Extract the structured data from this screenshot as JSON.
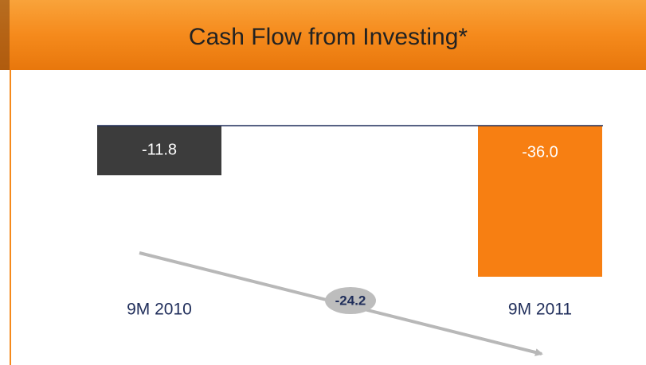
{
  "chart_data": {
    "type": "bar",
    "title": "Cash Flow from Investing*",
    "categories": [
      "9M 2010",
      "9M 2011"
    ],
    "values": [
      -11.8,
      -36.0
    ],
    "value_labels": [
      "-11.8",
      "-36.0"
    ],
    "colors": [
      "#3c3c3c",
      "#f77f12"
    ],
    "annotation": "-24.2"
  }
}
